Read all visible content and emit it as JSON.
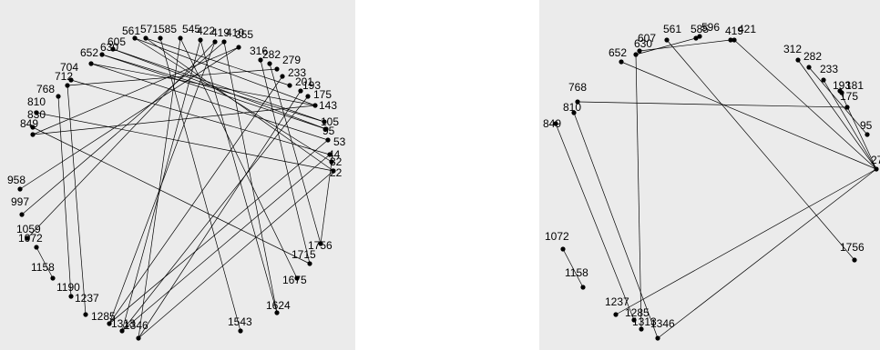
{
  "colors": {
    "panel_background": "#ebebeb",
    "ink": "#000000"
  },
  "graphs": [
    {
      "id": "left",
      "nodes": [
        {
          "id": "561",
          "label": "561"
        },
        {
          "id": "571",
          "label": "571"
        },
        {
          "id": "585",
          "label": "585"
        },
        {
          "id": "545",
          "label": "545"
        },
        {
          "id": "422",
          "label": "422"
        },
        {
          "id": "419",
          "label": "419"
        },
        {
          "id": "410",
          "label": "410"
        },
        {
          "id": "355",
          "label": "355"
        },
        {
          "id": "316",
          "label": "316"
        },
        {
          "id": "282",
          "label": "282"
        },
        {
          "id": "279",
          "label": "279"
        },
        {
          "id": "233",
          "label": "233"
        },
        {
          "id": "201",
          "label": "201"
        },
        {
          "id": "193",
          "label": "193"
        },
        {
          "id": "175",
          "label": "175"
        },
        {
          "id": "143",
          "label": "143"
        },
        {
          "id": "105",
          "label": "105"
        },
        {
          "id": "95",
          "label": "95"
        },
        {
          "id": "53",
          "label": "53"
        },
        {
          "id": "44",
          "label": "44"
        },
        {
          "id": "32",
          "label": "32"
        },
        {
          "id": "22",
          "label": "22"
        },
        {
          "id": "1756",
          "label": "1756"
        },
        {
          "id": "1715",
          "label": "1715"
        },
        {
          "id": "1675",
          "label": "1675"
        },
        {
          "id": "1624",
          "label": "1624"
        },
        {
          "id": "1543",
          "label": "1543"
        },
        {
          "id": "1346",
          "label": "1346"
        },
        {
          "id": "1313",
          "label": "1313"
        },
        {
          "id": "1285",
          "label": "1285"
        },
        {
          "id": "1237",
          "label": "1237"
        },
        {
          "id": "1190",
          "label": "1190"
        },
        {
          "id": "1158",
          "label": "1158"
        },
        {
          "id": "1072",
          "label": "1072"
        },
        {
          "id": "1059",
          "label": "1059"
        },
        {
          "id": "997",
          "label": "997"
        },
        {
          "id": "958",
          "label": "958"
        },
        {
          "id": "849",
          "label": "849"
        },
        {
          "id": "830",
          "label": "830"
        },
        {
          "id": "810",
          "label": "810"
        },
        {
          "id": "768",
          "label": "768"
        },
        {
          "id": "712",
          "label": "712"
        },
        {
          "id": "704",
          "label": "704"
        },
        {
          "id": "652",
          "label": "652"
        },
        {
          "id": "630",
          "label": "630"
        },
        {
          "id": "605",
          "label": "605"
        }
      ],
      "edges": [
        [
          "561",
          "143"
        ],
        [
          "561",
          "32"
        ],
        [
          "571",
          "22"
        ],
        [
          "585",
          "1543"
        ],
        [
          "545",
          "1346"
        ],
        [
          "422",
          "1313"
        ],
        [
          "419",
          "1285"
        ],
        [
          "410",
          "997"
        ],
        [
          "355",
          "849"
        ],
        [
          "605",
          "105"
        ],
        [
          "630",
          "95"
        ],
        [
          "652",
          "53"
        ],
        [
          "704",
          "44"
        ],
        [
          "712",
          "1237"
        ],
        [
          "768",
          "1190"
        ],
        [
          "810",
          "22"
        ],
        [
          "830",
          "1715"
        ],
        [
          "849",
          "143"
        ],
        [
          "958",
          "355"
        ],
        [
          "1072",
          "1158"
        ],
        [
          "1624",
          "422"
        ],
        [
          "1675",
          "545"
        ],
        [
          "1756",
          "32"
        ],
        [
          "1346",
          "22"
        ],
        [
          "1313",
          "44"
        ],
        [
          "1285",
          "53"
        ],
        [
          "143",
          "652"
        ],
        [
          "105",
          "630"
        ],
        [
          "95",
          "605"
        ],
        [
          "233",
          "1285"
        ],
        [
          "279",
          "712"
        ],
        [
          "193",
          "1346"
        ],
        [
          "201",
          "571"
        ],
        [
          "175",
          "1313"
        ],
        [
          "316",
          "1715"
        ],
        [
          "282",
          "1756"
        ],
        [
          "410",
          "1624"
        ],
        [
          "1059",
          "419"
        ]
      ]
    },
    {
      "id": "right",
      "nodes": [
        {
          "id": "561",
          "label": "561"
        },
        {
          "id": "585",
          "label": "585"
        },
        {
          "id": "596",
          "label": "596"
        },
        {
          "id": "419",
          "label": "419"
        },
        {
          "id": "421",
          "label": "421"
        },
        {
          "id": "312",
          "label": "312"
        },
        {
          "id": "282",
          "label": "282"
        },
        {
          "id": "233",
          "label": "233"
        },
        {
          "id": "193",
          "label": "193"
        },
        {
          "id": "181",
          "label": "181"
        },
        {
          "id": "175",
          "label": "175"
        },
        {
          "id": "95",
          "label": "95"
        },
        {
          "id": "27",
          "label": "27"
        },
        {
          "id": "1756",
          "label": "1756"
        },
        {
          "id": "1346",
          "label": "1346"
        },
        {
          "id": "1313",
          "label": "1313"
        },
        {
          "id": "1285",
          "label": "1285"
        },
        {
          "id": "1237",
          "label": "1237"
        },
        {
          "id": "1158",
          "label": "1158"
        },
        {
          "id": "1072",
          "label": "1072"
        },
        {
          "id": "849",
          "label": "849"
        },
        {
          "id": "810",
          "label": "810"
        },
        {
          "id": "768",
          "label": "768"
        },
        {
          "id": "652",
          "label": "652"
        },
        {
          "id": "630",
          "label": "630"
        },
        {
          "id": "607",
          "label": "607"
        }
      ],
      "edges": [
        [
          "561",
          "1756"
        ],
        [
          "585",
          "630"
        ],
        [
          "419",
          "607"
        ],
        [
          "421",
          "27"
        ],
        [
          "652",
          "27"
        ],
        [
          "630",
          "1313"
        ],
        [
          "849",
          "1285"
        ],
        [
          "810",
          "1346"
        ],
        [
          "768",
          "175"
        ],
        [
          "1072",
          "1158"
        ],
        [
          "1237",
          "27"
        ],
        [
          "1346",
          "27"
        ],
        [
          "282",
          "95"
        ],
        [
          "233",
          "27"
        ],
        [
          "193",
          "27"
        ],
        [
          "312",
          "27"
        ]
      ]
    }
  ]
}
